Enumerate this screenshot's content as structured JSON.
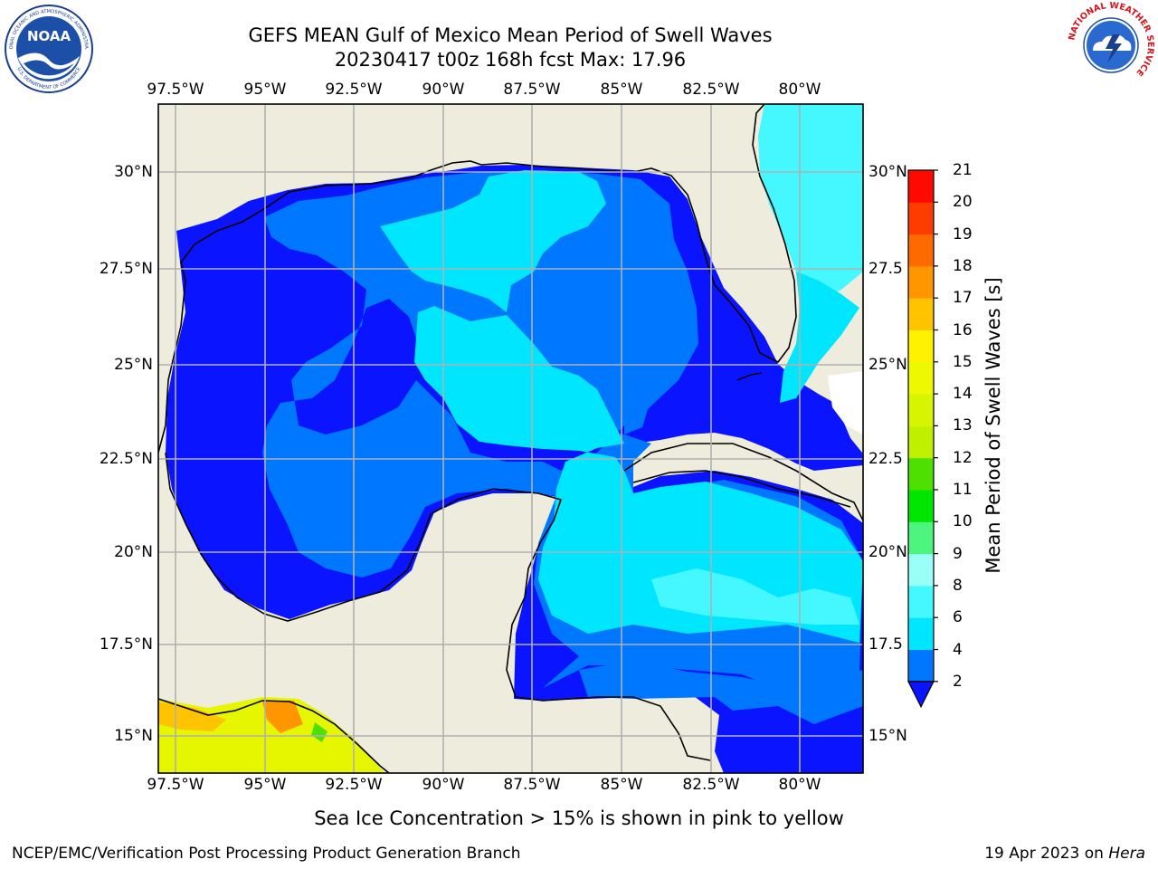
{
  "header": {
    "title_line1": "GEFS MEAN Gulf of Mexico Mean Period of Swell Waves",
    "title_line2": "20230417 t00z 168h fcst   Max: 17.96"
  },
  "map": {
    "region": "Gulf of Mexico",
    "lon_ticks": [
      "97.5°W",
      "95°W",
      "92.5°W",
      "90°W",
      "87.5°W",
      "85°W",
      "82.5°W",
      "80°W"
    ],
    "lat_ticks_left": [
      "30°N",
      "27.5°N",
      "25°N",
      "22.5°N",
      "20°N",
      "17.5°N",
      "15°N"
    ],
    "lat_ticks_right": [
      "30°N",
      "27.5",
      "25°N",
      "22.5",
      "20°N",
      "17.5",
      "15°N"
    ],
    "land_color": "#eeecdc",
    "gridline_color": "#b0b0b0"
  },
  "colorbar": {
    "label": "Mean Period of Swell Waves [s]",
    "ticks": [
      "2",
      "4",
      "6",
      "8",
      "9",
      "10",
      "11",
      "12",
      "13",
      "14",
      "15",
      "16",
      "17",
      "18",
      "19",
      "20",
      "21"
    ],
    "levels": [
      {
        "from": 2,
        "to": 4,
        "color": "#0077ff"
      },
      {
        "from": 4,
        "to": 6,
        "color": "#00e6ff"
      },
      {
        "from": 6,
        "to": 8,
        "color": "#45f7ff"
      },
      {
        "from": 8,
        "to": 9,
        "color": "#99fff7"
      },
      {
        "from": 9,
        "to": 10,
        "color": "#4df57f"
      },
      {
        "from": 10,
        "to": 11,
        "color": "#00e600"
      },
      {
        "from": 11,
        "to": 12,
        "color": "#4ee000"
      },
      {
        "from": 12,
        "to": 13,
        "color": "#bff000"
      },
      {
        "from": 13,
        "to": 14,
        "color": "#d7f500"
      },
      {
        "from": 14,
        "to": 15,
        "color": "#eef800"
      },
      {
        "from": 15,
        "to": 16,
        "color": "#fff200"
      },
      {
        "from": 16,
        "to": 17,
        "color": "#ffc300"
      },
      {
        "from": 17,
        "to": 18,
        "color": "#ff9600"
      },
      {
        "from": 18,
        "to": 19,
        "color": "#ff6a00"
      },
      {
        "from": 19,
        "to": 20,
        "color": "#ff3c00"
      },
      {
        "from": 20,
        "to": 21,
        "color": "#ff0a00"
      }
    ],
    "under_color": "#0a14ff",
    "extend": "min"
  },
  "footnote": "Sea Ice Concentration > 15% is shown in pink to yellow",
  "credits": {
    "left": "NCEP/EMC/Verification Post Processing Product Generation Branch",
    "right_date": "19 Apr 2023 on ",
    "right_machine": "Hera"
  },
  "logos": {
    "noaa_text": "NOAA",
    "noaa_ring_top": "NATIONAL OCEANIC AND ATMOSPHERIC ADMINISTRATION",
    "noaa_ring_bottom": "U.S. DEPARTMENT OF COMMERCE",
    "nws_ring": "NATIONAL WEATHER SERVICE"
  }
}
